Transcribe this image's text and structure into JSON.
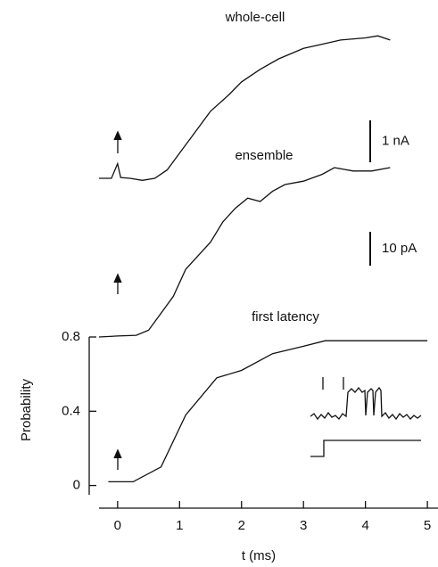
{
  "chart_data": [
    {
      "type": "line",
      "title": "whole-cell",
      "x": [
        -0.3,
        -0.1,
        0,
        0.05,
        0.2,
        0.4,
        0.6,
        0.8,
        1.0,
        1.2,
        1.5,
        1.8,
        2.0,
        2.3,
        2.6,
        3.0,
        3.3,
        3.6,
        4.0,
        4.2,
        4.4
      ],
      "values": [
        0,
        0,
        0.35,
        0.02,
        0,
        -0.05,
        0,
        0.2,
        0.6,
        1.0,
        1.6,
        2.0,
        2.3,
        2.6,
        2.85,
        3.1,
        3.2,
        3.3,
        3.35,
        3.4,
        3.3
      ],
      "scale_bar": {
        "value": 1,
        "label": "1 nA"
      },
      "color": "#111111"
    },
    {
      "type": "line",
      "title": "ensemble",
      "x": [
        -0.3,
        0,
        0.3,
        0.5,
        0.7,
        0.9,
        1.1,
        1.3,
        1.5,
        1.7,
        1.9,
        2.1,
        2.3,
        2.5,
        2.7,
        3.0,
        3.3,
        3.5,
        3.8,
        4.1,
        4.4
      ],
      "values": [
        0,
        0.3,
        0.5,
        2,
        7,
        12,
        20,
        24,
        28,
        34,
        38,
        41,
        40,
        43,
        45,
        46,
        48,
        50,
        49,
        49,
        50
      ],
      "scale_bar": {
        "value": 10,
        "label": "10 pA"
      },
      "color": "#111111"
    },
    {
      "type": "line",
      "title": "first latency",
      "xlabel": "t (ms)",
      "ylabel": "Probability",
      "x": [
        -0.15,
        0.25,
        0.7,
        1.1,
        1.6,
        2.0,
        2.5,
        3.0,
        3.35,
        5.0
      ],
      "values": [
        0.02,
        0.02,
        0.1,
        0.38,
        0.58,
        0.62,
        0.71,
        0.75,
        0.78,
        0.78
      ],
      "xlim": [
        -0.3,
        5.2
      ],
      "ylim": [
        -0.05,
        0.8
      ],
      "xticks": [
        0,
        1,
        2,
        3,
        4,
        5
      ],
      "yticks": [
        0,
        0.4,
        0.8
      ],
      "color": "#111111"
    }
  ]
}
